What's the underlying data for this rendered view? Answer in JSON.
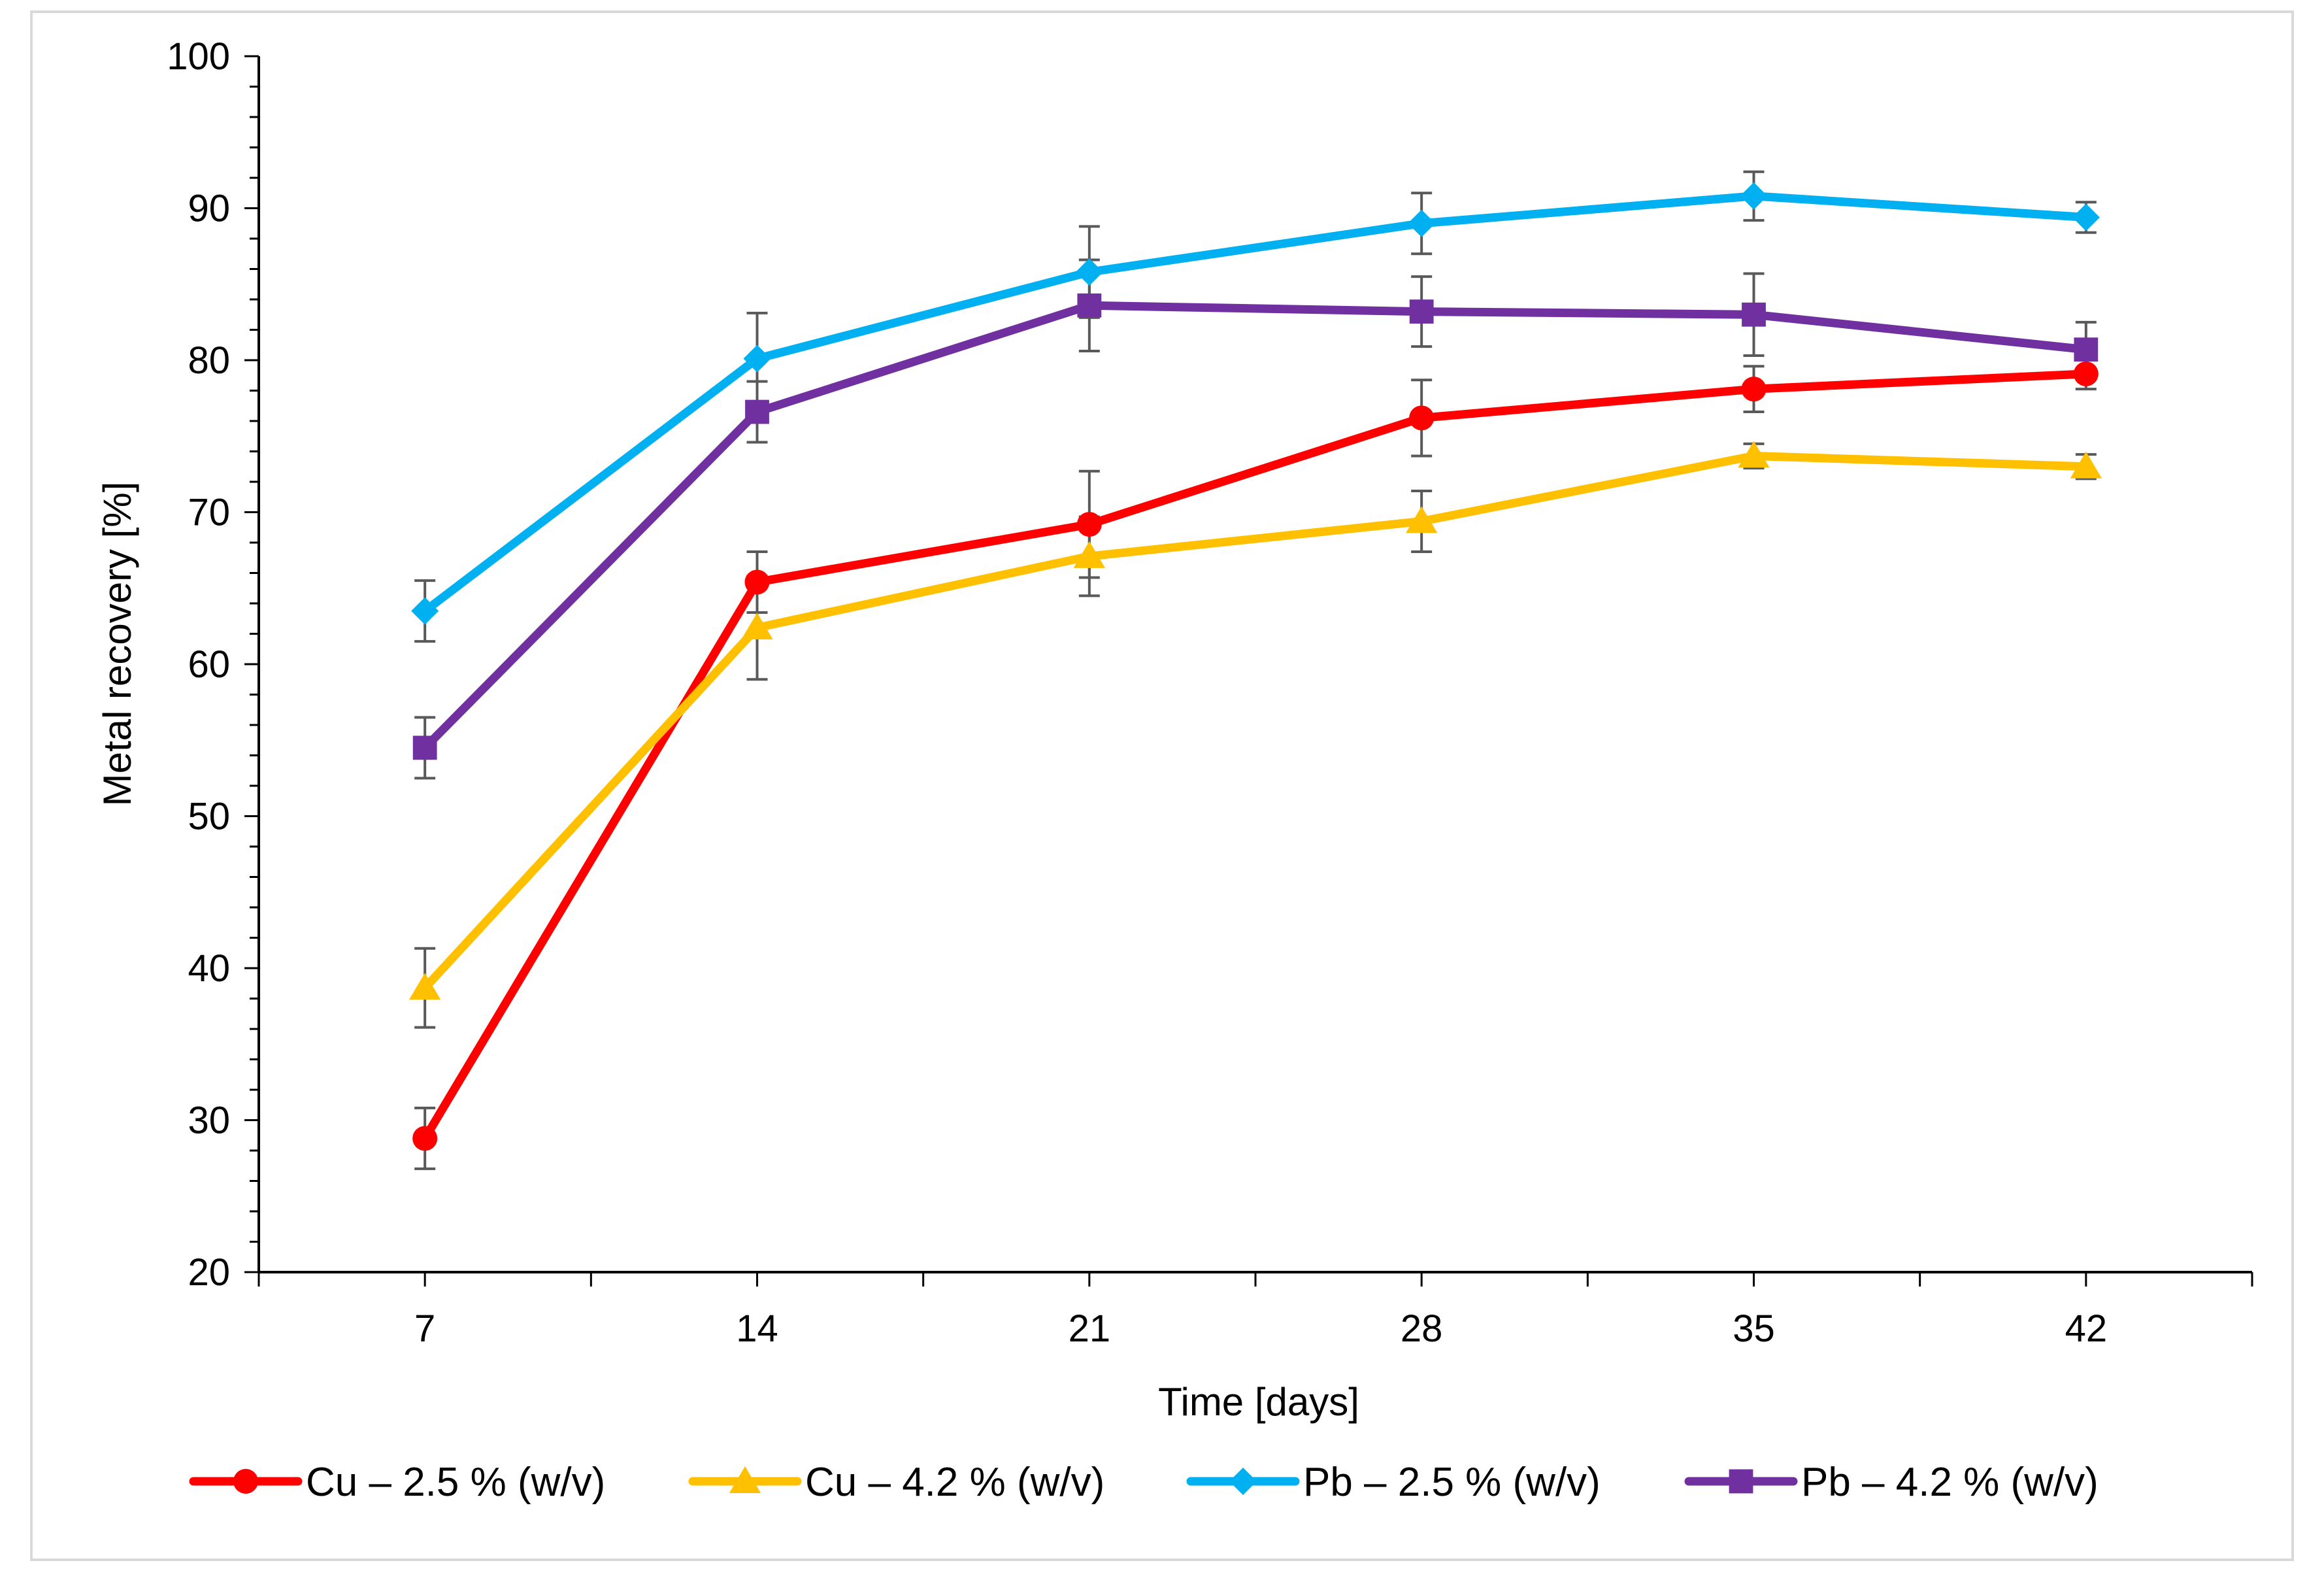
{
  "chart_data": {
    "type": "line",
    "title": "",
    "xlabel": "Time [days]",
    "ylabel": "Metal recovery [%]",
    "categories": [
      "7",
      "14",
      "21",
      "28",
      "35",
      "42"
    ],
    "ylim": [
      20,
      100
    ],
    "yticks": [
      20,
      30,
      40,
      50,
      60,
      70,
      80,
      90,
      100
    ],
    "grid": false,
    "legend_position": "bottom",
    "series": [
      {
        "name": "Cu – 2.5 % (w/v)",
        "color": "#ff0000",
        "marker": "circle",
        "values": [
          28.8,
          65.4,
          69.2,
          76.2,
          78.1,
          79.1
        ],
        "errors": [
          2.0,
          2.0,
          3.5,
          2.5,
          1.5,
          1.0
        ]
      },
      {
        "name": "Cu – 4.2 % (w/v)",
        "color": "#ffc000",
        "marker": "triangle",
        "values": [
          38.7,
          62.4,
          67.1,
          69.4,
          73.7,
          73.0
        ],
        "errors": [
          2.6,
          3.4,
          2.6,
          2.0,
          0.8,
          0.8
        ]
      },
      {
        "name": "Pb – 2.5 % (w/v)",
        "color": "#00b0f0",
        "marker": "diamond",
        "values": [
          63.5,
          80.1,
          85.8,
          89.0,
          90.8,
          89.4
        ],
        "errors": [
          2.0,
          3.0,
          3.0,
          2.0,
          1.6,
          1.0
        ]
      },
      {
        "name": "Pb – 4.2 % (w/v)",
        "color": "#7030a0",
        "marker": "square",
        "values": [
          54.5,
          76.6,
          83.6,
          83.2,
          83.0,
          80.7
        ],
        "errors": [
          2.0,
          2.0,
          3.0,
          2.3,
          2.7,
          1.8
        ]
      }
    ]
  }
}
